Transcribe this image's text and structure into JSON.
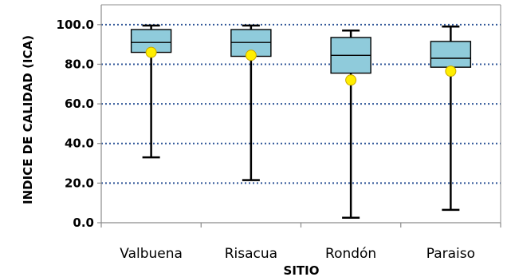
{
  "chart_data": {
    "type": "box",
    "title": "",
    "xlabel": "SITIO",
    "ylabel": "INDICE DE CALIDAD (ICA)",
    "ylim": [
      0,
      110
    ],
    "yticks": [
      0,
      20,
      40,
      60,
      80,
      100
    ],
    "ytick_labels": [
      "0.0",
      "20.0",
      "40.0",
      "60.0",
      "80.0",
      "100.0"
    ],
    "grid": "horizontal dotted",
    "categories": [
      "Valbuena",
      "Risacua",
      "Rondón",
      "Paraiso"
    ],
    "series": [
      {
        "category": "Valbuena",
        "min": 33,
        "q1": 86,
        "median": 91,
        "q3": 97.5,
        "max": 99.5,
        "mean": 86
      },
      {
        "category": "Risacua",
        "min": 21.5,
        "q1": 84,
        "median": 91,
        "q3": 97.5,
        "max": 99.5,
        "mean": 84.5
      },
      {
        "category": "Rondón",
        "min": 2.5,
        "q1": 75.5,
        "median": 84.5,
        "q3": 93.5,
        "max": 97,
        "mean": 72
      },
      {
        "category": "Paraiso",
        "min": 6.5,
        "q1": 78.5,
        "median": 83,
        "q3": 91.5,
        "max": 99,
        "mean": 76.5
      }
    ],
    "colors": {
      "box_fill": "#8fcbdb",
      "box_stroke": "#000000",
      "mean_marker": "#ffee00",
      "mean_marker_stroke": "#c8a800",
      "grid": "#2f5597",
      "axis": "#8c8c8c"
    }
  }
}
